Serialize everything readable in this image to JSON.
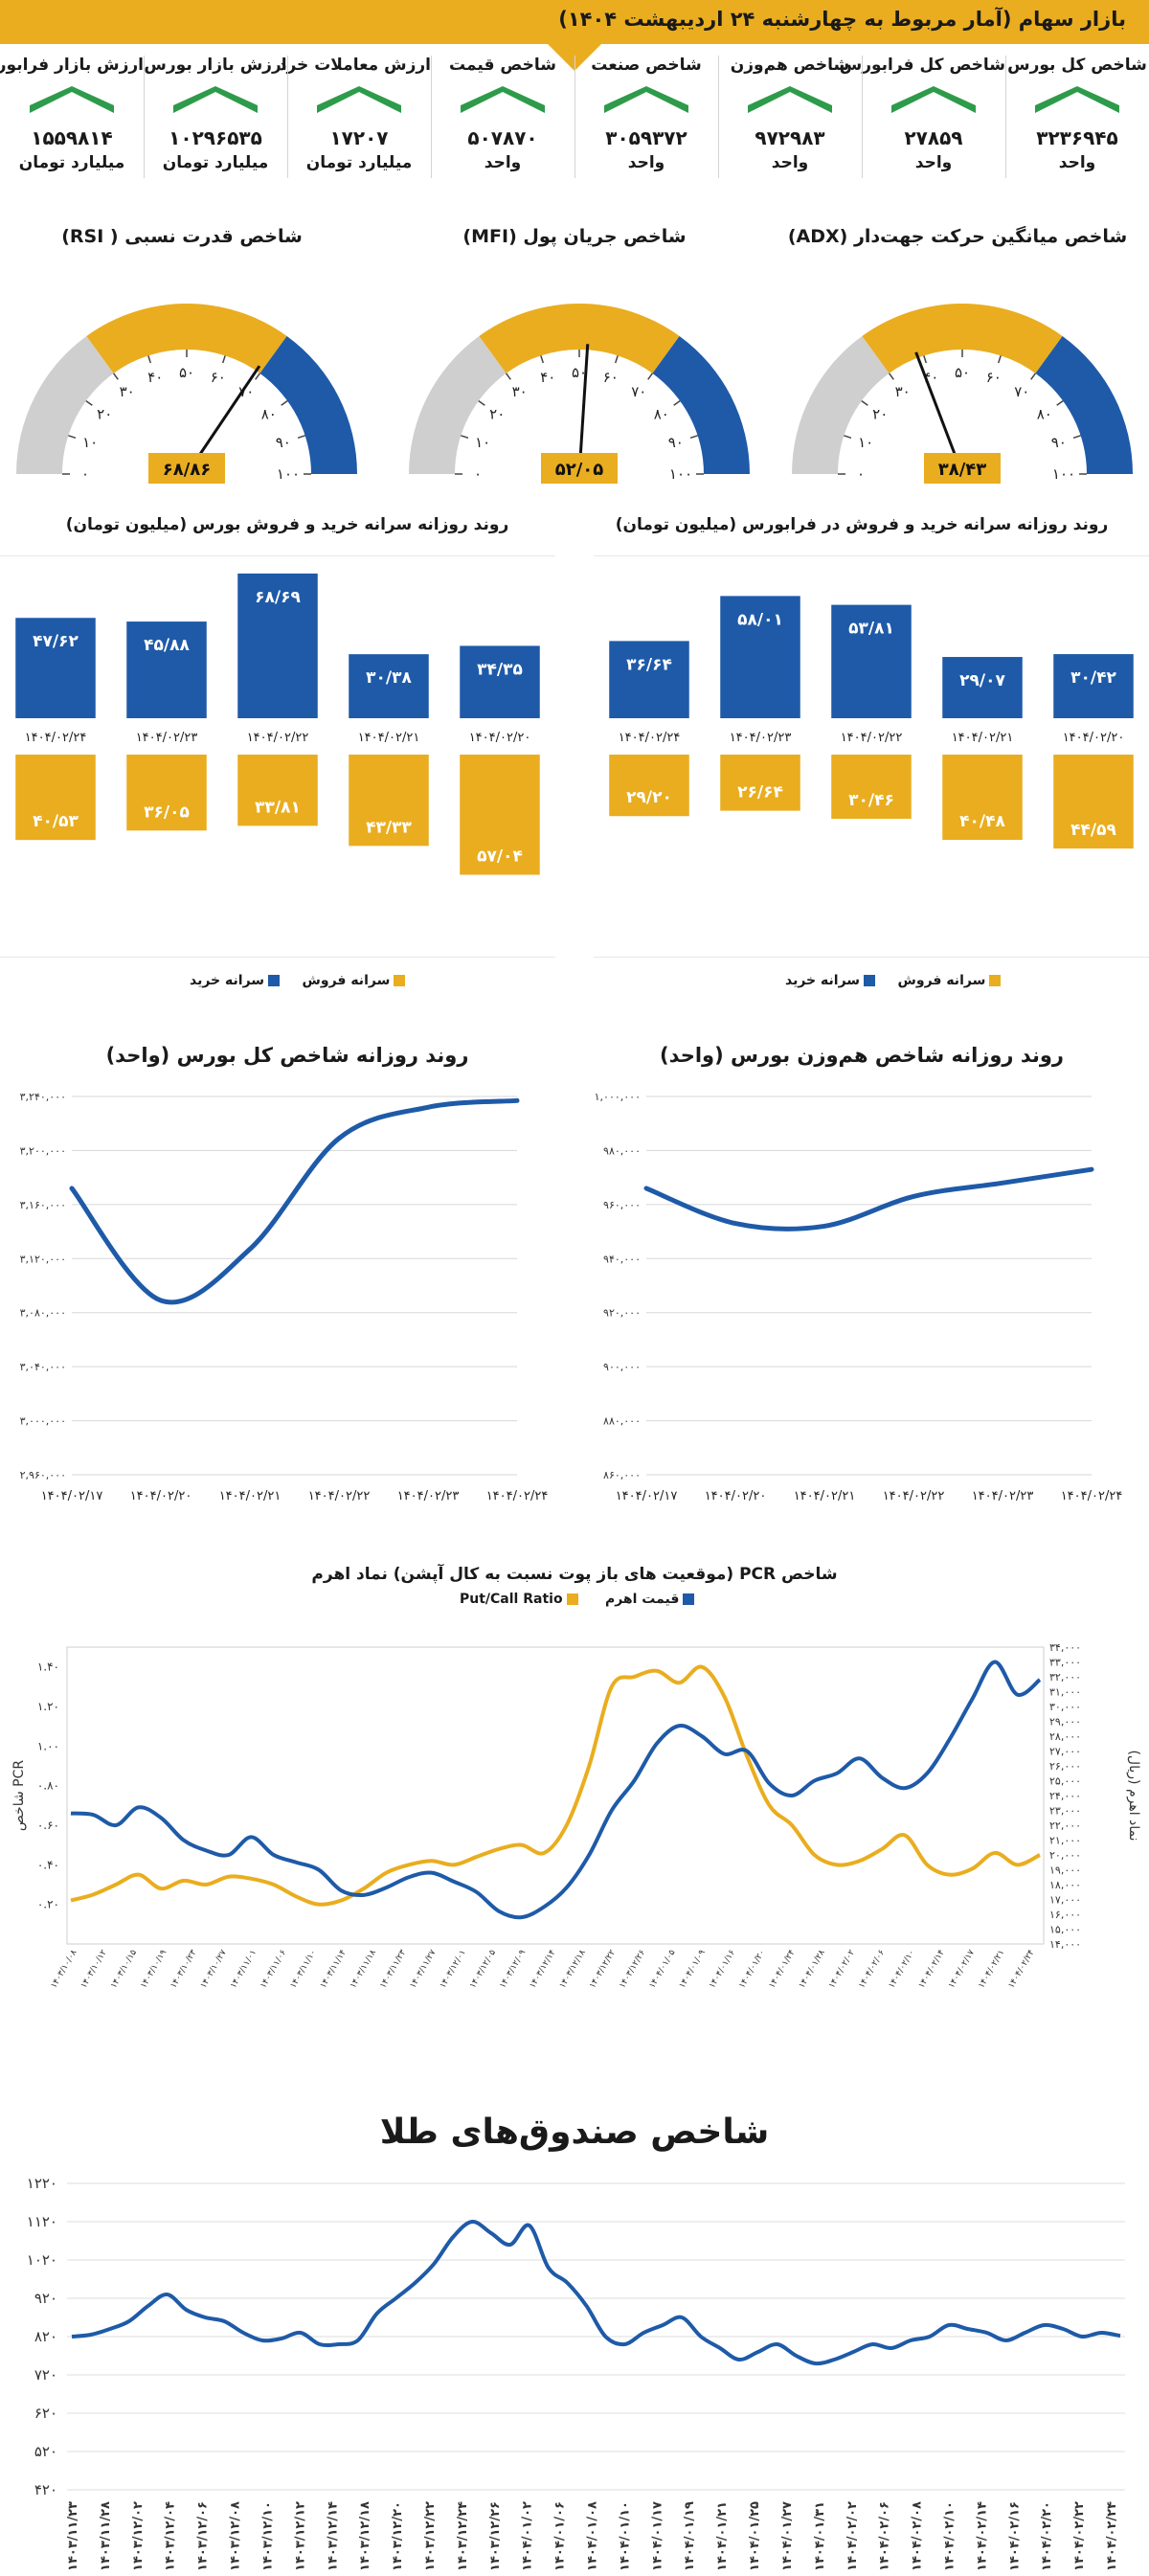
{
  "header": {
    "title": "بازار سهام (آمار مربوط به چهارشنبه ۲۴ اردیبهشت ۱۴۰۴)"
  },
  "kpis": [
    {
      "label": "شاخص کل بورس",
      "value": "۳۲۳۶۹۴۵",
      "unit": "واحد"
    },
    {
      "label": "شاخص کل فرابورس",
      "value": "۲۷۸۵۹",
      "unit": "واحد"
    },
    {
      "label": "شاخص هم‌وزن",
      "value": "۹۷۲۹۸۳",
      "unit": "واحد"
    },
    {
      "label": "شاخص صنعت",
      "value": "۳۰۵۹۳۷۲",
      "unit": "واحد"
    },
    {
      "label": "شاخص قیمت",
      "value": "۵۰۷۸۷۰",
      "unit": "واحد"
    },
    {
      "label": "ارزش معاملات خرد",
      "value": "۱۷۲۰۷",
      "unit": "میلیارد تومان"
    },
    {
      "label": "ارزش بازار بورس",
      "value": "۱۰۲۹۶۵۳۵",
      "unit": "میلیارد تومان"
    },
    {
      "label": "ارزش بازار فرابورس",
      "value": "۱۵۵۹۸۱۴",
      "unit": "میلیارد تومان"
    }
  ],
  "colors": {
    "gold": "#e9ad1f",
    "blue": "#1e5aa8",
    "gray": "#cfcfcf",
    "green": "#2e9b4b"
  },
  "chart_data": [
    {
      "type": "gauge",
      "id": "adx",
      "title": "شاخص میانگین حرکت جهت‌دار (ADX)",
      "value": 38.43,
      "value_label": "۳۸/۴۳",
      "range": [
        0,
        100
      ],
      "bands": [
        {
          "from": 0,
          "to": 30,
          "color": "#cfcfcf"
        },
        {
          "from": 30,
          "to": 70,
          "color": "#e9ad1f"
        },
        {
          "from": 70,
          "to": 100,
          "color": "#1e5aa8"
        }
      ],
      "tick_labels": [
        "۰",
        "۱۰",
        "۲۰",
        "۳۰",
        "۴۰",
        "۵۰",
        "۶۰",
        "۷۰",
        "۸۰",
        "۹۰",
        "۱۰۰"
      ]
    },
    {
      "type": "gauge",
      "id": "mfi",
      "title": "شاخص جریان پول (MFI)",
      "value": 52.05,
      "value_label": "۵۲/۰۵",
      "range": [
        0,
        100
      ],
      "bands": [
        {
          "from": 0,
          "to": 30,
          "color": "#cfcfcf"
        },
        {
          "from": 30,
          "to": 70,
          "color": "#e9ad1f"
        },
        {
          "from": 70,
          "to": 100,
          "color": "#1e5aa8"
        }
      ],
      "tick_labels": [
        "۰",
        "۱۰",
        "۲۰",
        "۳۰",
        "۴۰",
        "۵۰",
        "۶۰",
        "۷۰",
        "۸۰",
        "۹۰",
        "۱۰۰"
      ]
    },
    {
      "type": "gauge",
      "id": "rsi",
      "title": "شاخص قدرت نسبی ( RSI)",
      "value": 68.86,
      "value_label": "۶۸/۸۶",
      "range": [
        0,
        100
      ],
      "bands": [
        {
          "from": 0,
          "to": 30,
          "color": "#cfcfcf"
        },
        {
          "from": 30,
          "to": 70,
          "color": "#e9ad1f"
        },
        {
          "from": 70,
          "to": 100,
          "color": "#1e5aa8"
        }
      ],
      "tick_labels": [
        "۰",
        "۱۰",
        "۲۰",
        "۳۰",
        "۴۰",
        "۵۰",
        "۶۰",
        "۷۰",
        "۸۰",
        "۹۰",
        "۱۰۰"
      ]
    },
    {
      "type": "bar",
      "id": "fara_bars",
      "title": "روند روزانه سرانه خرید و فروش در فرابورس (میلیون تومان)",
      "categories": [
        "۱۴۰۴/۰۲/۲۰",
        "۱۴۰۴/۰۲/۲۱",
        "۱۴۰۴/۰۲/۲۲",
        "۱۴۰۴/۰۲/۲۳",
        "۱۴۰۴/۰۲/۲۴"
      ],
      "series": [
        {
          "name": "سرانه خرید",
          "color": "#1e5aa8",
          "values": [
            30.42,
            29.07,
            53.81,
            58.01,
            36.64
          ],
          "labels": [
            "۳۰/۴۲",
            "۲۹/۰۷",
            "۵۳/۸۱",
            "۵۸/۰۱",
            "۳۶/۶۴"
          ]
        },
        {
          "name": "سرانه فروش",
          "color": "#e9ad1f",
          "values": [
            44.59,
            40.48,
            30.46,
            26.64,
            29.2
          ],
          "labels": [
            "۴۴/۵۹",
            "۴۰/۴۸",
            "۳۰/۴۶",
            "۲۶/۶۴",
            "۲۹/۲۰"
          ]
        }
      ]
    },
    {
      "type": "bar",
      "id": "bourse_bars",
      "title": "روند روزانه سرانه خرید و فروش بورس (میلیون تومان)",
      "categories": [
        "۱۴۰۴/۰۲/۲۰",
        "۱۴۰۴/۰۲/۲۱",
        "۱۴۰۴/۰۲/۲۲",
        "۱۴۰۴/۰۲/۲۳",
        "۱۴۰۴/۰۲/۲۴"
      ],
      "series": [
        {
          "name": "سرانه خرید",
          "color": "#1e5aa8",
          "values": [
            34.35,
            30.38,
            68.69,
            45.88,
            47.62
          ],
          "labels": [
            "۳۴/۳۵",
            "۳۰/۳۸",
            "۶۸/۶۹",
            "۴۵/۸۸",
            "۴۷/۶۲"
          ]
        },
        {
          "name": "سرانه فروش",
          "color": "#e9ad1f",
          "values": [
            57.04,
            43.33,
            33.81,
            36.05,
            40.53
          ],
          "labels": [
            "۵۷/۰۴",
            "۴۳/۳۳",
            "۳۳/۸۱",
            "۳۶/۰۵",
            "۴۰/۵۳"
          ]
        }
      ]
    },
    {
      "type": "line",
      "id": "hamvazn_line",
      "title": "روند روزانه شاخص هم‌وزن بورس (واحد)",
      "x": [
        "۱۴۰۴/۰۲/۱۷",
        "۱۴۰۴/۰۲/۲۰",
        "۱۴۰۴/۰۲/۲۱",
        "۱۴۰۴/۰۲/۲۲",
        "۱۴۰۴/۰۲/۲۳",
        "۱۴۰۴/۰۲/۲۴"
      ],
      "values": [
        966000,
        953000,
        952000,
        963000,
        968000,
        973000
      ],
      "ylim": [
        860000,
        1000000
      ],
      "yticks": [
        860000,
        880000,
        900000,
        920000,
        940000,
        960000,
        980000,
        1000000
      ],
      "ytick_labels": [
        "۸۶۰,۰۰۰",
        "۸۸۰,۰۰۰",
        "۹۰۰,۰۰۰",
        "۹۲۰,۰۰۰",
        "۹۴۰,۰۰۰",
        "۹۶۰,۰۰۰",
        "۹۸۰,۰۰۰",
        "۱,۰۰۰,۰۰۰"
      ]
    },
    {
      "type": "line",
      "id": "kol_line",
      "title": "روند روزانه شاخص کل بورس (واحد)",
      "x": [
        "۱۴۰۴/۰۲/۱۷",
        "۱۴۰۴/۰۲/۲۰",
        "۱۴۰۴/۰۲/۲۱",
        "۱۴۰۴/۰۲/۲۲",
        "۱۴۰۴/۰۲/۲۳",
        "۱۴۰۴/۰۲/۲۴"
      ],
      "values": [
        3172000,
        3089000,
        3127000,
        3209000,
        3232000,
        3236945
      ],
      "ylim": [
        2960000,
        3240000
      ],
      "yticks": [
        2960000,
        3000000,
        3040000,
        3080000,
        3120000,
        3160000,
        3200000,
        3240000
      ],
      "ytick_labels": [
        "۲,۹۶۰,۰۰۰",
        "۳,۰۰۰,۰۰۰",
        "۳,۰۴۰,۰۰۰",
        "۳,۰۸۰,۰۰۰",
        "۳,۱۲۰,۰۰۰",
        "۳,۱۶۰,۰۰۰",
        "۳,۲۰۰,۰۰۰",
        "۳,۲۴۰,۰۰۰"
      ]
    },
    {
      "type": "line",
      "id": "pcr",
      "title": "شاخص PCR (موقعیت های باز پوت نسبت به کال آپشن) نماد اهرم",
      "ylabel_left": "شاخص PCR",
      "ylabel_right": "نماد اهرم (ریال)",
      "series": [
        {
          "name": "Put/Call Ratio",
          "color": "#e9ad1f",
          "axis": "left",
          "values": [
            0.22,
            0.25,
            0.3,
            0.35,
            0.28,
            0.32,
            0.3,
            0.34,
            0.33,
            0.3,
            0.24,
            0.2,
            0.22,
            0.28,
            0.36,
            0.4,
            0.42,
            0.4,
            0.44,
            0.48,
            0.5,
            0.46,
            0.6,
            0.9,
            1.3,
            1.35,
            1.38,
            1.32,
            1.4,
            1.25,
            0.95,
            0.7,
            0.6,
            0.45,
            0.4,
            0.42,
            0.48,
            0.55,
            0.4,
            0.35,
            0.38,
            0.46,
            0.4,
            0.45
          ]
        },
        {
          "name": "قیمت اهرم",
          "color": "#1e5aa8",
          "axis": "right",
          "values": [
            22800,
            22700,
            22000,
            23200,
            22500,
            21000,
            20300,
            20000,
            21200,
            20000,
            19500,
            19000,
            17600,
            17300,
            17800,
            18500,
            18800,
            18200,
            17500,
            16200,
            15800,
            16500,
            17800,
            20000,
            23000,
            25000,
            27500,
            28700,
            28000,
            26800,
            27000,
            24800,
            24000,
            25000,
            25500,
            26500,
            25200,
            24500,
            25500,
            27800,
            30500,
            33000,
            30800,
            31800
          ]
        }
      ],
      "y_left_lim": [
        0,
        1.5
      ],
      "y_left_ticks": [
        0.2,
        0.4,
        0.6,
        0.8,
        1.0,
        1.2,
        1.4
      ],
      "y_left_tick_labels": [
        "۰.۲۰",
        "۰.۴۰",
        "۰.۶۰",
        "۰.۸۰",
        "۱.۰۰",
        "۱.۲۰",
        "۱.۴۰"
      ],
      "y_right_lim": [
        14000,
        34000
      ],
      "y_right_ticks": [
        14000,
        15000,
        16000,
        17000,
        18000,
        19000,
        20000,
        21000,
        22000,
        23000,
        24000,
        25000,
        26000,
        27000,
        28000,
        29000,
        30000,
        31000,
        32000,
        33000,
        34000
      ],
      "y_right_tick_labels": [
        "۱۴,۰۰۰",
        "۱۵,۰۰۰",
        "۱۶,۰۰۰",
        "۱۷,۰۰۰",
        "۱۸,۰۰۰",
        "۱۹,۰۰۰",
        "۲۰,۰۰۰",
        "۲۱,۰۰۰",
        "۲۲,۰۰۰",
        "۲۳,۰۰۰",
        "۲۴,۰۰۰",
        "۲۵,۰۰۰",
        "۲۶,۰۰۰",
        "۲۷,۰۰۰",
        "۲۸,۰۰۰",
        "۲۹,۰۰۰",
        "۳۰,۰۰۰",
        "۳۱,۰۰۰",
        "۳۲,۰۰۰",
        "۳۳,۰۰۰",
        "۳۴,۰۰۰"
      ],
      "x_labels": [
        "۱۴۰۳/۱۰/۰۸",
        "۱۴۰۳/۱۰/۱۲",
        "۱۴۰۳/۱۰/۱۵",
        "۱۴۰۳/۱۰/۱۹",
        "۱۴۰۳/۱۰/۲۳",
        "۱۴۰۳/۱۰/۲۷",
        "۱۴۰۳/۱۱/۰۱",
        "۱۴۰۳/۱۱/۰۶",
        "۱۴۰۳/۱۱/۱۰",
        "۱۴۰۳/۱۱/۱۴",
        "۱۴۰۳/۱۱/۱۸",
        "۱۴۰۳/۱۱/۲۳",
        "۱۴۰۳/۱۱/۲۷",
        "۱۴۰۳/۱۲/۰۱",
        "۱۴۰۳/۱۲/۰۵",
        "۱۴۰۳/۱۲/۰۹",
        "۱۴۰۳/۱۲/۱۴",
        "۱۴۰۳/۱۲/۱۸",
        "۱۴۰۳/۱۲/۲۲",
        "۱۴۰۳/۱۲/۲۶",
        "۱۴۰۴/۰۱/۰۵",
        "۱۴۰۴/۰۱/۰۹",
        "۱۴۰۴/۰۱/۱۶",
        "۱۴۰۴/۰۱/۲۰",
        "۱۴۰۴/۰۱/۲۴",
        "۱۴۰۴/۰۱/۲۸",
        "۱۴۰۴/۰۲/۰۲",
        "۱۴۰۴/۰۲/۰۶",
        "۱۴۰۴/۰۲/۱۰",
        "۱۴۰۴/۰۲/۱۴",
        "۱۴۰۴/۰۲/۱۷",
        "۱۴۰۴/۰۲/۲۱",
        "۱۴۰۴/۰۲/۲۴"
      ]
    },
    {
      "type": "line",
      "id": "gold",
      "title": "شاخص صندوق‌های طلا",
      "values": [
        820,
        825,
        840,
        860,
        900,
        930,
        890,
        870,
        860,
        830,
        810,
        815,
        830,
        800,
        800,
        810,
        880,
        920,
        960,
        1010,
        1080,
        1120,
        1090,
        1060,
        1110,
        1000,
        960,
        900,
        820,
        800,
        830,
        850,
        870,
        820,
        790,
        760,
        780,
        800,
        770,
        750,
        760,
        780,
        800,
        790,
        810,
        820,
        850,
        840,
        830,
        810,
        830,
        850,
        840,
        820,
        830,
        822
      ],
      "ylim": [
        420,
        1220
      ],
      "yticks": [
        420,
        520,
        620,
        720,
        820,
        920,
        1020,
        1120,
        1220
      ],
      "ytick_labels": [
        "۴۲۰",
        "۵۲۰",
        "۶۲۰",
        "۷۲۰",
        "۸۲۰",
        "۹۲۰",
        "۱۰۲۰",
        "۱۱۲۰",
        "۱۲۲۰"
      ],
      "x_labels": [
        "۱۴۰۳/۱۱/۲۳",
        "۱۴۰۳/۱۱/۲۸",
        "۱۴۰۳/۱۲/۰۲",
        "۱۴۰۳/۱۲/۰۴",
        "۱۴۰۳/۱۲/۰۶",
        "۱۴۰۳/۱۲/۰۸",
        "۱۴۰۳/۱۲/۱۰",
        "۱۴۰۳/۱۲/۱۲",
        "۱۴۰۳/۱۲/۱۴",
        "۱۴۰۳/۱۲/۱۸",
        "۱۴۰۳/۱۲/۲۰",
        "۱۴۰۳/۱۲/۲۲",
        "۱۴۰۳/۱۲/۲۴",
        "۱۴۰۳/۱۲/۲۶",
        "۱۴۰۴/۰۱/۰۲",
        "۱۴۰۴/۰۱/۰۶",
        "۱۴۰۴/۰۱/۰۸",
        "۱۴۰۴/۰۱/۱۰",
        "۱۴۰۴/۰۱/۱۷",
        "۱۴۰۴/۰۱/۱۹",
        "۱۴۰۴/۰۱/۲۱",
        "۱۴۰۴/۰۱/۲۵",
        "۱۴۰۴/۰۱/۲۷",
        "۱۴۰۴/۰۱/۳۱",
        "۱۴۰۴/۰۲/۰۲",
        "۱۴۰۴/۰۲/۰۶",
        "۱۴۰۴/۰۲/۰۸",
        "۱۴۰۴/۰۲/۱۰",
        "۱۴۰۴/۰۲/۱۴",
        "۱۴۰۴/۰۲/۱۶",
        "۱۴۰۴/۰۲/۲۰",
        "۱۴۰۴/۰۲/۲۲",
        "۱۴۰۴/۰۲/۲۴"
      ]
    }
  ]
}
